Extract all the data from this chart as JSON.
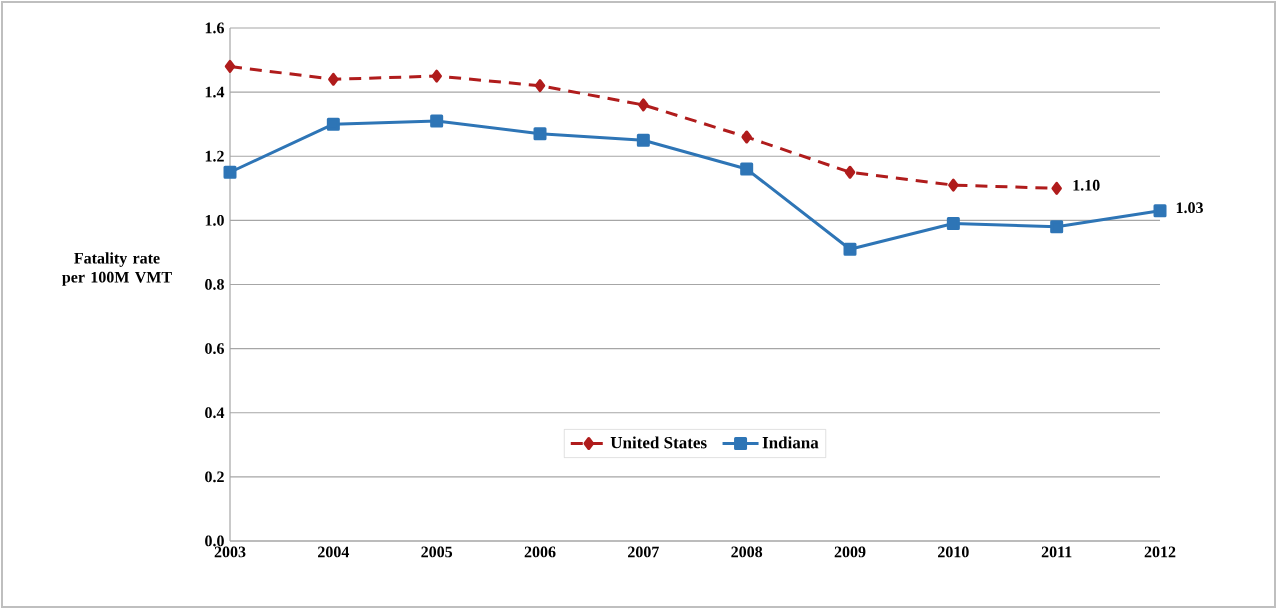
{
  "chart_data": {
    "type": "line",
    "ylabel": "Fatality rate per 100M VMT",
    "categories": [
      "2003",
      "2004",
      "2005",
      "2006",
      "2007",
      "2008",
      "2009",
      "2010",
      "2011",
      "2012"
    ],
    "series": [
      {
        "name": "United States",
        "color": "#b01c1c",
        "marker": "diamond",
        "line_style": "dashed",
        "values": [
          1.48,
          1.44,
          1.45,
          1.42,
          1.36,
          1.26,
          1.15,
          1.11,
          1.1,
          null
        ]
      },
      {
        "name": "Indiana",
        "color": "#2e75b6",
        "marker": "square",
        "line_style": "solid",
        "values": [
          1.15,
          1.3,
          1.31,
          1.27,
          1.25,
          1.16,
          0.91,
          0.99,
          0.98,
          1.03
        ]
      }
    ],
    "ylim": [
      0,
      1.6
    ],
    "yticks": [
      {
        "value": 0,
        "label": "0.0"
      },
      {
        "value": 0.2,
        "label": "0.2"
      },
      {
        "value": 0.4,
        "label": "0.4"
      },
      {
        "value": 0.6,
        "label": "0.6"
      },
      {
        "value": 0.8,
        "label": "0.8"
      },
      {
        "value": 1.0,
        "label": "1.0"
      },
      {
        "value": 1.2,
        "label": "1.2"
      },
      {
        "value": 1.4,
        "label": "1.4"
      },
      {
        "value": 1.6,
        "label": "1.6"
      }
    ],
    "grid": "y",
    "legend": "bottom",
    "annotations": [
      {
        "text": "1.10",
        "x": "2011",
        "y": 1.1
      },
      {
        "text": "1.03",
        "x": "2012",
        "y": 1.03
      }
    ]
  }
}
